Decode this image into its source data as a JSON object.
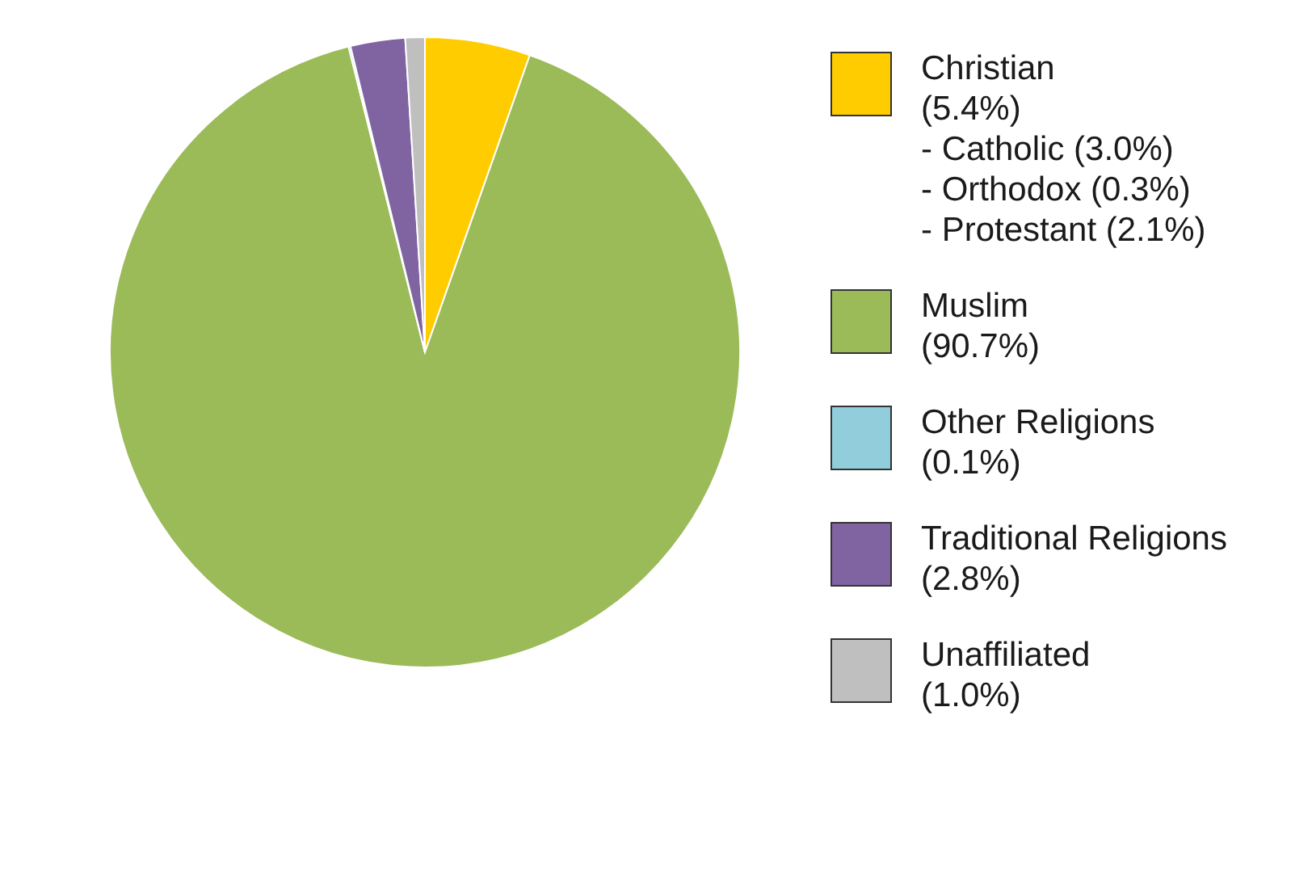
{
  "chart_data": {
    "type": "pie",
    "categories": [
      "Christian",
      "Muslim",
      "Other Religions",
      "Traditional Religions",
      "Unaffiliated"
    ],
    "values": [
      5.4,
      90.7,
      0.1,
      2.8,
      1.0
    ],
    "value_labels": [
      "(5.4%)",
      "(90.7%)",
      "(0.1%)",
      "(2.8%)",
      "(1.0%)"
    ],
    "colors": [
      "#ffcc00",
      "#9bbb59",
      "#92cddc",
      "#8064a2",
      "#bfbfbf"
    ],
    "annotations": [
      "- Catholic (3.0%)",
      "- Orthodox (0.3%)",
      "- Protestant (2.1%)"
    ],
    "legend": "right"
  }
}
